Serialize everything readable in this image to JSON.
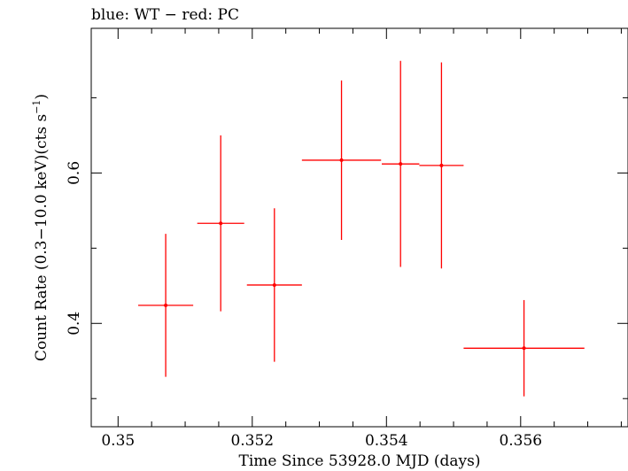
{
  "chart_data": {
    "type": "scatter",
    "title": "blue: WT − red: PC",
    "xlabel": "Time Since 53928.0 MJD (days)",
    "ylabel_main": "Count Rate (0.3−10.0 keV)(cts s",
    "ylabel_sup": "−1",
    "ylabel_close": ")",
    "xlim": [
      0.3496,
      0.3576
    ],
    "ylim": [
      0.2626,
      0.7923
    ],
    "x_ticks": [
      {
        "value": 0.35,
        "label": "0.35"
      },
      {
        "value": 0.352,
        "label": "0.352"
      },
      {
        "value": 0.354,
        "label": "0.354"
      },
      {
        "value": 0.356,
        "label": "0.356"
      }
    ],
    "x_minor_step": 0.0005,
    "y_ticks": [
      {
        "value": 0.4,
        "label": "0.4"
      },
      {
        "value": 0.6,
        "label": "0.6"
      }
    ],
    "y_minor_step": 0.1,
    "grid": false,
    "series": [
      {
        "name": "PC",
        "color": "#ff0000",
        "points": [
          {
            "x": 0.35071,
            "xerr": 0.00041,
            "y": 0.424,
            "yerr": 0.095
          },
          {
            "x": 0.35153,
            "xerr": 0.00035,
            "y": 0.533,
            "yerr": 0.117
          },
          {
            "x": 0.35233,
            "xerr": 0.00041,
            "y": 0.451,
            "yerr": 0.102
          },
          {
            "x": 0.35333,
            "xerr": 0.00059,
            "y": 0.617,
            "yerr": 0.106
          },
          {
            "x": 0.35421,
            "xerr": 0.00028,
            "y": 0.612,
            "yerr": 0.137
          },
          {
            "x": 0.35482,
            "xerr": 0.00033,
            "y": 0.61,
            "yerr": 0.137
          },
          {
            "x": 0.35605,
            "xerr": 0.0009,
            "y": 0.367,
            "yerr": 0.064
          }
        ]
      }
    ]
  }
}
